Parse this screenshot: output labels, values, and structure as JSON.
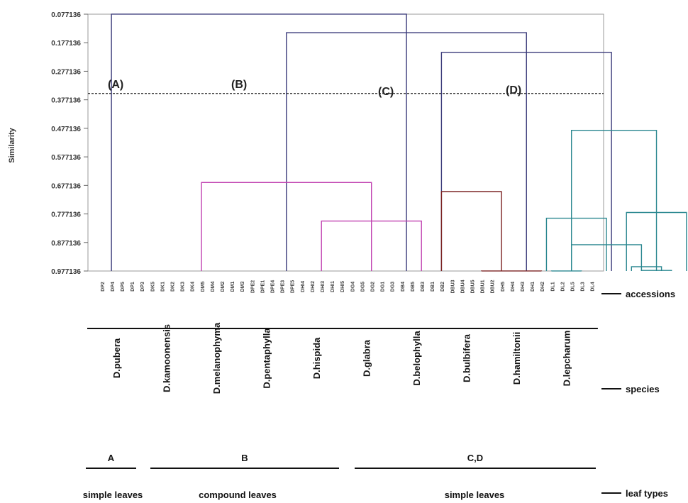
{
  "chart_data": {
    "type": "dendrogram",
    "ylabel": "Similarity",
    "y_ticks": [
      "0.077136",
      "0.177136",
      "0.277136",
      "0.377136",
      "0.477136",
      "0.577136",
      "0.677136",
      "0.777136",
      "0.877136",
      "0.977136"
    ],
    "ylim": [
      0.077136,
      0.977136
    ],
    "cut_line": 0.355,
    "leaves": [
      "DP2",
      "DP4",
      "DP5",
      "DP1",
      "DP3",
      "DK5",
      "DK1",
      "DK2",
      "DK3",
      "DK4",
      "DM5",
      "DM4",
      "DM2",
      "DM1",
      "DM3",
      "DPE2",
      "DPE1",
      "DPE4",
      "DPE3",
      "DPE5",
      "DHI4",
      "DHI2",
      "DHI3",
      "DHI1",
      "DHI5",
      "DG4",
      "DG5",
      "DG2",
      "DG1",
      "DG3",
      "DB4",
      "DB5",
      "DB3",
      "DB1",
      "DB2",
      "DBU3",
      "DBU4",
      "DBU5",
      "DBU1",
      "DBU2",
      "DH5",
      "DH4",
      "DH3",
      "DH1",
      "DH2",
      "DL1",
      "DL2",
      "DL5",
      "DL3",
      "DL4"
    ],
    "merges": [
      {
        "left": 1,
        "right": 30.5,
        "height": 0.077
      },
      {
        "left": 18.5,
        "right": 42.5,
        "height": 0.142
      },
      {
        "left": 34,
        "right": 51,
        "height": 0.211
      },
      {
        "left": 34,
        "right": 40,
        "height": 0.699,
        "color": "#7a2020"
      },
      {
        "left": 38,
        "right": 44,
        "height": 0.977,
        "color": "#7a2020"
      },
      {
        "left": 47,
        "right": 55.5,
        "height": 0.484,
        "color": "#2a8790"
      },
      {
        "left": 52.5,
        "right": 58.5,
        "height": 0.772,
        "color": "#2a8790"
      },
      {
        "left": 44.5,
        "right": 50.5,
        "height": 0.792,
        "color": "#2a8790"
      },
      {
        "left": 47,
        "right": 54,
        "height": 0.885,
        "color": "#2a8790"
      },
      {
        "left": 45,
        "right": 48,
        "height": 0.977,
        "color": "#2a8790"
      },
      {
        "left": 53,
        "right": 56,
        "height": 0.962,
        "color": "#2a8790"
      },
      {
        "left": 54,
        "right": 57,
        "height": 0.975,
        "color": "#2a8790"
      },
      {
        "left": 10,
        "right": 27,
        "height": 0.667,
        "color": "#c040b0"
      },
      {
        "left": 22,
        "right": 32,
        "height": 0.802,
        "color": "#c040b0"
      }
    ],
    "cluster_labels": [
      "(A)",
      "(B)",
      "(C)",
      "(D)"
    ],
    "species": [
      "D.pubera",
      "D.kamoonensis",
      "D.melanophyma",
      "D.pentaphylla",
      "D.hispida",
      "D.glabra",
      "D.belophylla",
      "D.bulbifera",
      "D.hamiltonii",
      "D.lepcharum"
    ],
    "groups": [
      "A",
      "B",
      "C,D"
    ],
    "leaf_types": [
      "simple leaves",
      "compound leaves",
      "simple leaves"
    ],
    "row_legend": [
      "accessions",
      "species",
      "leaf types"
    ],
    "colors": {
      "main": "#3a3a7a",
      "pink": "#c040b0",
      "brown": "#7a2020",
      "teal": "#2a8790"
    }
  }
}
